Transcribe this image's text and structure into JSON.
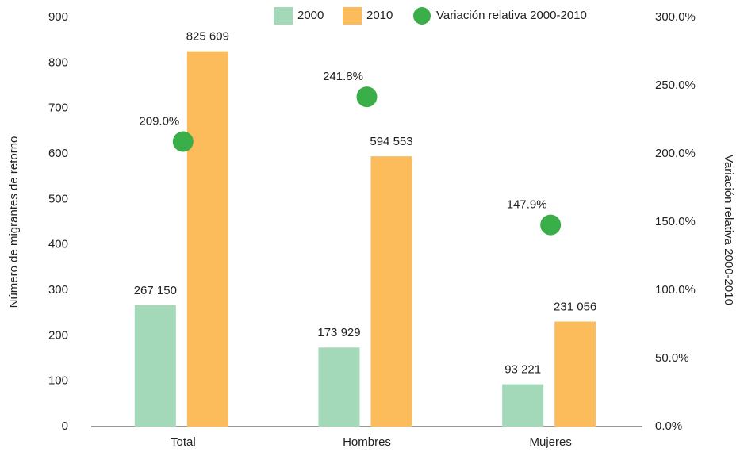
{
  "chart_data": {
    "type": "bar",
    "ylabel": "Número de migrantes de retorno",
    "y2label": "Variación relativa 2000-2010",
    "categories": [
      "Total",
      "Hombres",
      "Mujeres"
    ],
    "series": [
      {
        "name": "2000",
        "color": "#a3d8b8",
        "values": [
          267.15,
          173.929,
          93.221
        ],
        "value_labels": [
          "267 150",
          "173 929",
          "93 221"
        ]
      },
      {
        "name": "2010",
        "color": "#fdbc5b",
        "values": [
          825.609,
          594.553,
          231.056
        ],
        "value_labels": [
          "825 609",
          "594 553",
          "231 056"
        ]
      },
      {
        "name": "Variación relativa 2000-2010",
        "type": "scatter",
        "axis": "y2",
        "color": "#3aae48",
        "values": [
          209.0,
          241.8,
          147.9
        ],
        "value_labels": [
          "209.0%",
          "241.8%",
          "147.9%"
        ]
      }
    ],
    "ylim": [
      0,
      900
    ],
    "yticks": [
      0,
      100,
      200,
      300,
      400,
      500,
      600,
      700,
      800,
      900
    ],
    "y2lim": [
      0,
      300
    ],
    "y2ticks": [
      {
        "value": 0,
        "label": "0.0%"
      },
      {
        "value": 50,
        "label": "50.0%"
      },
      {
        "value": 100,
        "label": "100.0%"
      },
      {
        "value": 150,
        "label": "150.0%"
      },
      {
        "value": 200,
        "label": "200.0%"
      },
      {
        "value": 250,
        "label": "250.0%"
      },
      {
        "value": 300,
        "label": "300.0%"
      }
    ],
    "legend": "top"
  }
}
